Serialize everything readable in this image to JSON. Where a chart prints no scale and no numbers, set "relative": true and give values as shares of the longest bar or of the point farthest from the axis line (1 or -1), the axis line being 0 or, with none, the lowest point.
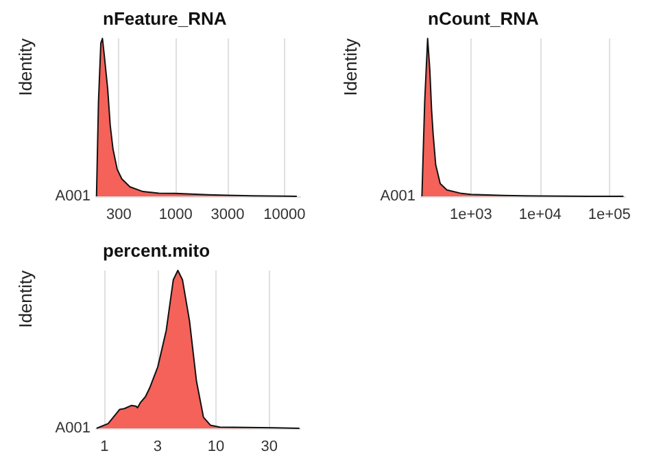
{
  "chart_data": [
    {
      "type": "area",
      "title": "nFeature_RNA",
      "ylabel": "Identity",
      "annotations": [
        "A001"
      ],
      "relative": true,
      "log": "x",
      "grid": "x",
      "color": "#f4625a",
      "xlim": [
        185,
        14000
      ],
      "xticks": [
        300,
        1000,
        3000,
        10000
      ],
      "x": [
        187,
        195,
        205,
        212,
        220,
        237,
        250,
        265,
        290,
        320,
        380,
        500,
        700,
        1000,
        2000,
        3000,
        5000,
        10000,
        13000
      ],
      "values": [
        0,
        0.6,
        0.97,
        1,
        0.9,
        0.68,
        0.45,
        0.3,
        0.17,
        0.11,
        0.06,
        0.03,
        0.02,
        0.018,
        0.01,
        0.006,
        0.003,
        0.001,
        0
      ]
    },
    {
      "type": "area",
      "title": "nCount_RNA",
      "ylabel": "Identity",
      "annotations": [
        "A001"
      ],
      "relative": true,
      "log": "x",
      "grid": "x",
      "color": "#f4625a",
      "xlim": [
        190,
        170000
      ],
      "xticks": [
        {
          "value": 1000,
          "label": "1e+03"
        },
        {
          "value": 10000,
          "label": "1e+04"
        },
        {
          "value": 100000,
          "label": "1e+05"
        }
      ],
      "x": [
        196,
        215,
        237,
        255,
        270,
        285,
        310,
        360,
        450,
        700,
        1000,
        3000,
        10000,
        50000,
        160000
      ],
      "values": [
        0,
        0.6,
        1,
        0.8,
        0.55,
        0.39,
        0.2,
        0.08,
        0.04,
        0.02,
        0.012,
        0.005,
        0.002,
        0.0005,
        0
      ]
    },
    {
      "type": "area",
      "title": "percent.mito",
      "ylabel": "Identity",
      "annotations": [
        "A001"
      ],
      "relative": true,
      "log": "x",
      "grid": "x",
      "color": "#f4625a",
      "xlim": [
        0.84,
        57
      ],
      "xticks": [
        1,
        3,
        10,
        30
      ],
      "x": [
        0.85,
        1.08,
        1.37,
        1.51,
        1.75,
        1.92,
        1.98,
        2.11,
        2.33,
        2.56,
        3.01,
        3.58,
        4.14,
        4.55,
        5.01,
        5.79,
        6.68,
        7.72,
        8.91,
        10.8,
        34,
        56
      ],
      "values": [
        0,
        0.03,
        0.12,
        0.125,
        0.145,
        0.14,
        0.13,
        0.165,
        0.2,
        0.26,
        0.39,
        0.62,
        0.94,
        1,
        0.94,
        0.68,
        0.3,
        0.07,
        0.02,
        0.008,
        0.003,
        0
      ]
    }
  ]
}
